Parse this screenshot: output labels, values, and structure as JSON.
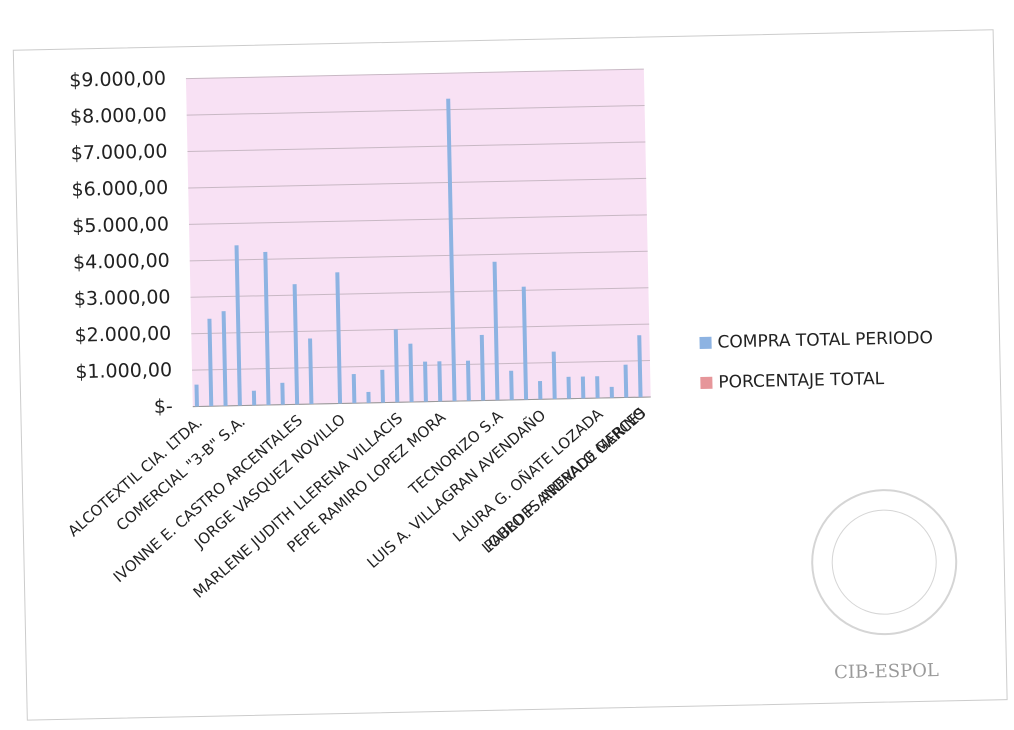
{
  "chart_data": {
    "type": "bar",
    "categories": [
      "ALCOTEXTIL CIA. LTDA.",
      null,
      null,
      "COMERCIAL \"3-B\" S.A.",
      null,
      null,
      null,
      "IVONNE E. CASTRO ARCENTALES",
      null,
      null,
      "JORGE VASQUEZ NOVILLO",
      null,
      null,
      null,
      "MARLENE JUDITH LLERENA VILLACIS",
      null,
      null,
      "PEPE RAMIRO LOPEZ MORA",
      null,
      null,
      null,
      "TECNORIZO S.A",
      null,
      null,
      "LUIS A. VILLAGRAN AVENDAÑO",
      null,
      null,
      null,
      "LAURA G. OÑATE LOZADA",
      null,
      null,
      "LOURDES AREVALO GARCES"
    ],
    "series": [
      {
        "name": "COMPRA TOTAL PERIODO",
        "color": "#8db3e2",
        "values": [
          600,
          2400,
          2600,
          4400,
          400,
          4200,
          600,
          3300,
          1800,
          0,
          3600,
          800,
          300,
          900,
          2000,
          1600,
          1100,
          1100,
          8300,
          1100,
          1800,
          3800,
          800,
          3100,
          500,
          1300,
          600,
          600,
          600,
          300,
          900,
          1700
        ]
      },
      {
        "name": "PORCENTAJE TOTAL",
        "color": "#e6969a",
        "values": [
          0,
          0,
          0,
          0,
          0,
          0,
          0,
          0,
          0,
          0,
          0,
          0,
          0,
          0,
          0,
          0,
          0,
          0,
          0,
          0,
          0,
          0,
          0,
          0,
          0,
          0,
          0,
          0,
          0,
          0,
          0,
          0
        ]
      }
    ],
    "extra_label": "PABLO P. ANDRADE MERINO",
    "ylim": [
      0,
      9000
    ],
    "yticks": [
      {
        "value": 0,
        "label": "$-"
      },
      {
        "value": 1000,
        "label": "$1.000,00"
      },
      {
        "value": 2000,
        "label": "$2.000,00"
      },
      {
        "value": 3000,
        "label": "$3.000,00"
      },
      {
        "value": 4000,
        "label": "$4.000,00"
      },
      {
        "value": 5000,
        "label": "$5.000,00"
      },
      {
        "value": 6000,
        "label": "$6.000,00"
      },
      {
        "value": 7000,
        "label": "$7.000,00"
      },
      {
        "value": 8000,
        "label": "$8.000,00"
      },
      {
        "value": 9000,
        "label": "$9.000,00"
      }
    ],
    "grid": true,
    "legend": "right",
    "plot_background": "#f8e1f4",
    "stamp_text": "CIB-ESPOL"
  }
}
